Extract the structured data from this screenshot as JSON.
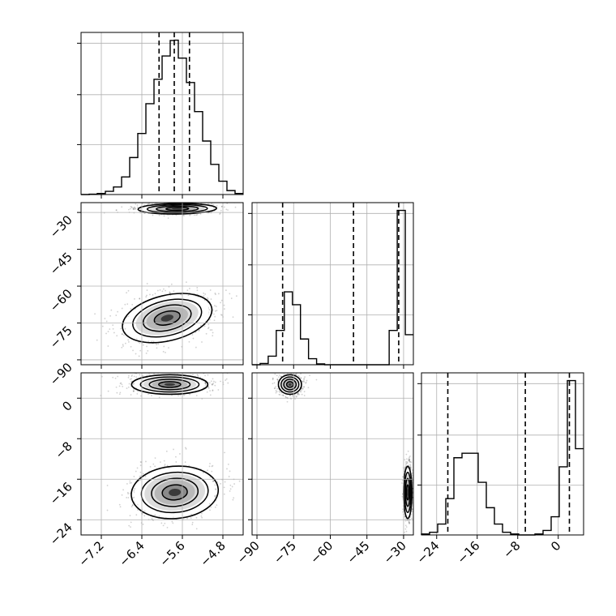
{
  "chart_data": [
    {
      "type": "histogram",
      "panel": "marginal-x",
      "xlim": [
        -7.6,
        -4.4
      ],
      "xticks": [
        "-7.2",
        "-6.4",
        "-5.6",
        "-4.8"
      ],
      "quantile_lines": [
        -6.06,
        -5.76,
        -5.46
      ],
      "bin_edges": [
        -7.6,
        -7.44,
        -7.28,
        -7.12,
        -6.96,
        -6.8,
        -6.64,
        -6.48,
        -6.32,
        -6.16,
        -6.0,
        -5.84,
        -5.76,
        -5.68,
        -5.52,
        -5.36,
        -5.2,
        -5.04,
        -4.88,
        -4.72,
        -4.56,
        -4.4
      ],
      "counts": [
        0,
        1,
        3,
        9,
        21,
        49,
        103,
        170,
        253,
        321,
        386,
        429,
        430,
        380,
        312,
        231,
        149,
        84,
        37,
        11,
        3
      ]
    },
    {
      "type": "histogram",
      "panel": "marginal-y",
      "xlim": [
        -92,
        -26
      ],
      "xticks": [
        "-90",
        "-75",
        "-60",
        "-45",
        "-30"
      ],
      "quantile_lines": [
        -79.5,
        -50.5,
        -32.0
      ],
      "bin_edges": [
        -92,
        -88.7,
        -85.4,
        -82.1,
        -78.8,
        -75.5,
        -72.2,
        -68.9,
        -65.6,
        -62.3,
        -59.0,
        -55.7,
        -52.4,
        -49.1,
        -45.8,
        -42.5,
        -39.2,
        -35.9,
        -32.6,
        -29.3,
        -26.0
      ],
      "counts": [
        0,
        3,
        20,
        80,
        170,
        140,
        60,
        14,
        2,
        0,
        0,
        0,
        0,
        0,
        0,
        0,
        0,
        80,
        360,
        70
      ]
    },
    {
      "type": "histogram",
      "panel": "marginal-z",
      "xlim": [
        -27,
        5
      ],
      "xticks": [
        "-24",
        "-16",
        "-8",
        "0"
      ],
      "quantile_lines": [
        -21.8,
        -6.5,
        2.2
      ],
      "bin_edges": [
        -27,
        -25.4,
        -23.8,
        -22.2,
        -20.6,
        -19.0,
        -17.4,
        -15.8,
        -14.2,
        -12.6,
        -11.0,
        -9.4,
        -7.8,
        -6.2,
        -4.6,
        -3.0,
        -1.4,
        0.2,
        1.8,
        3.4,
        5.0
      ],
      "counts": [
        1,
        3,
        12,
        40,
        85,
        90,
        90,
        58,
        30,
        12,
        3,
        1,
        0,
        0,
        1,
        5,
        20,
        75,
        170,
        95
      ]
    },
    {
      "type": "scatter-density",
      "panel": "joint-x-y",
      "xlim": [
        -7.6,
        -4.4
      ],
      "ylim": [
        -92,
        -26
      ],
      "yticks": [
        "-30",
        "-45",
        "-60",
        "-75",
        "-90"
      ],
      "modes": [
        {
          "cx": -5.7,
          "cy": -28.5,
          "sx": 0.36,
          "sy": 1.0,
          "rho": 0.1
        },
        {
          "cx": -5.9,
          "cy": -73.0,
          "sx": 0.42,
          "sy": 4.3,
          "rho": 0.55
        }
      ]
    },
    {
      "type": "scatter-density",
      "panel": "joint-x-z",
      "xlim": [
        -7.6,
        -4.4
      ],
      "ylim": [
        -27,
        5
      ],
      "yticks": [
        "0",
        "-8",
        "-16",
        "-24"
      ],
      "modes": [
        {
          "cx": -5.85,
          "cy": 2.7,
          "sx": 0.35,
          "sy": 0.9,
          "rho": 0.0
        },
        {
          "cx": -5.75,
          "cy": -18.6,
          "sx": 0.4,
          "sy": 2.4,
          "rho": 0.15
        }
      ]
    },
    {
      "type": "scatter-density",
      "panel": "joint-y-z",
      "xlim": [
        -92,
        -26
      ],
      "ylim": [
        -27,
        5
      ],
      "modes": [
        {
          "cx": -76.5,
          "cy": 2.7,
          "sx": 2.2,
          "sy": 0.9,
          "rho": 0.0
        },
        {
          "cx": -28.3,
          "cy": -18.6,
          "sx": 0.8,
          "sy": 2.4,
          "rho": 0.0
        }
      ]
    }
  ]
}
